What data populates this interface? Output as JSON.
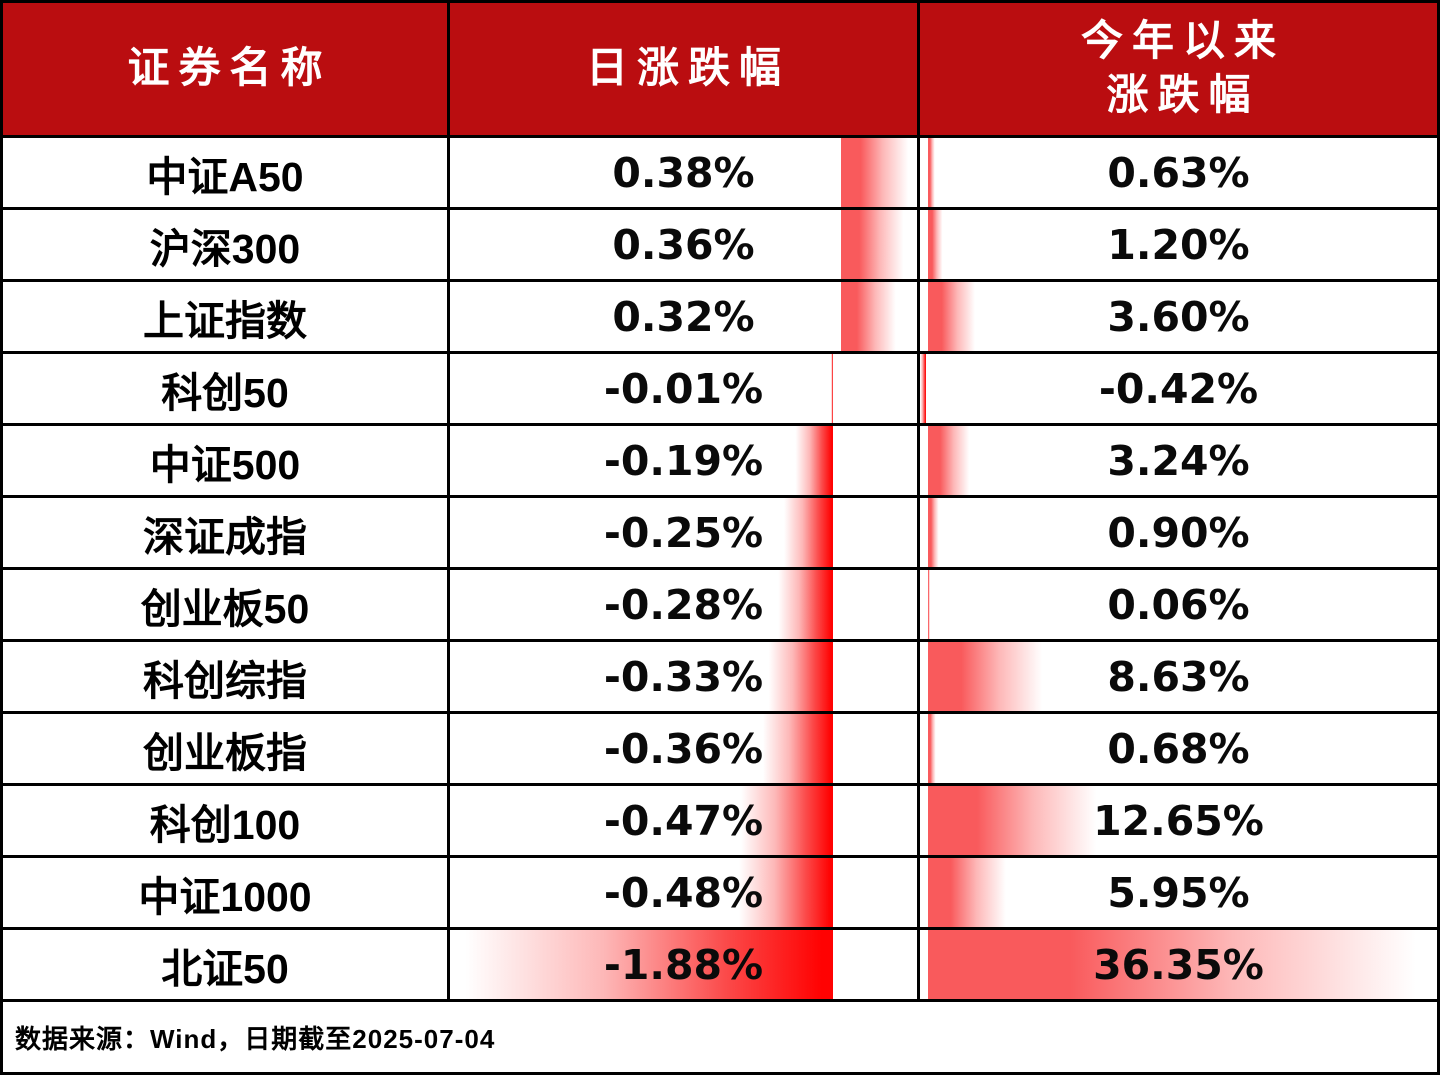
{
  "table": {
    "headers": {
      "security_name": "证券名称",
      "daily_change": "日涨跌幅",
      "ytd_line1": "今年以来",
      "ytd_line2": "涨跌幅"
    },
    "footer_note": "数据来源：Wind，日期截至2025-07-04"
  },
  "chart_data": {
    "type": "table",
    "columns": [
      "证券名称",
      "日涨跌幅",
      "今年以来涨跌幅"
    ],
    "rows": [
      {
        "name": "中证A50",
        "daily": 0.38,
        "daily_label": "0.38%",
        "ytd": 0.63,
        "ytd_label": "0.63%"
      },
      {
        "name": "沪深300",
        "daily": 0.36,
        "daily_label": "0.36%",
        "ytd": 1.2,
        "ytd_label": "1.20%"
      },
      {
        "name": "上证指数",
        "daily": 0.32,
        "daily_label": "0.32%",
        "ytd": 3.6,
        "ytd_label": "3.60%"
      },
      {
        "name": "科创50",
        "daily": -0.01,
        "daily_label": "-0.01%",
        "ytd": -0.42,
        "ytd_label": "-0.42%"
      },
      {
        "name": "中证500",
        "daily": -0.19,
        "daily_label": "-0.19%",
        "ytd": 3.24,
        "ytd_label": "3.24%"
      },
      {
        "name": "深证成指",
        "daily": -0.25,
        "daily_label": "-0.25%",
        "ytd": 0.9,
        "ytd_label": "0.90%"
      },
      {
        "name": "创业板50",
        "daily": -0.28,
        "daily_label": "-0.28%",
        "ytd": 0.06,
        "ytd_label": "0.06%"
      },
      {
        "name": "科创综指",
        "daily": -0.33,
        "daily_label": "-0.33%",
        "ytd": 8.63,
        "ytd_label": "8.63%"
      },
      {
        "name": "创业板指",
        "daily": -0.36,
        "daily_label": "-0.36%",
        "ytd": 0.68,
        "ytd_label": "0.68%"
      },
      {
        "name": "科创100",
        "daily": -0.47,
        "daily_label": "-0.47%",
        "ytd": 12.65,
        "ytd_label": "12.65%"
      },
      {
        "name": "中证1000",
        "daily": -0.48,
        "daily_label": "-0.48%",
        "ytd": 5.95,
        "ytd_label": "5.95%"
      },
      {
        "name": "北证50",
        "daily": -1.88,
        "daily_label": "-1.88%",
        "ytd": 36.35,
        "ytd_label": "36.35%"
      }
    ],
    "daily_axis": {
      "min": -1.88,
      "max": 0.38
    },
    "ytd_axis": {
      "min": -0.42,
      "max": 36.35
    },
    "bar_style": "gradient red data bars anchored at zero axis; negative bars extend left (solid red at axis), positive bars extend right (salmon at axis fading to white)"
  },
  "colors": {
    "header_bg": "#BA0D10",
    "header_text": "#FFFFFF",
    "bar_strong": "#FF0202",
    "bar_soft": "#F95A5C",
    "border": "#000000",
    "text": "#000000"
  }
}
